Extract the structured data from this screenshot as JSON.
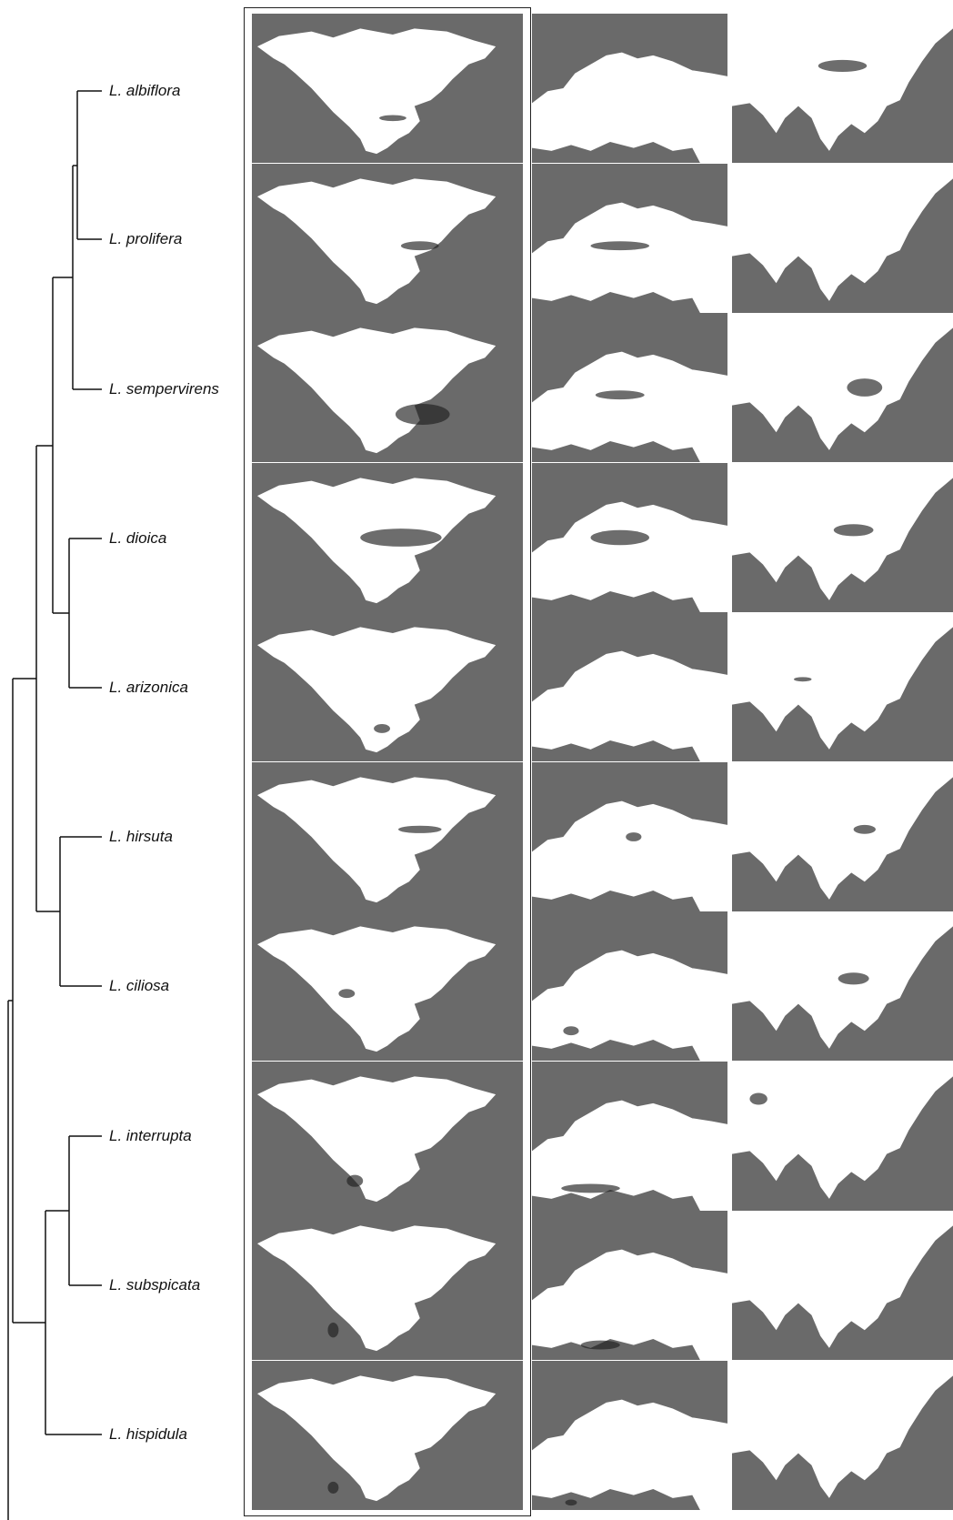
{
  "taxa": [
    "L. albiflora",
    "L. prolifera",
    "L. sempervirens",
    "L. dioica",
    "L. arizonica",
    "L. hirsuta",
    "L. ciliosa",
    "L. interrupta",
    "L. subspicata",
    "L. hispidula"
  ],
  "map_regions": [
    "north-america",
    "europe",
    "east-asia"
  ],
  "colors": {
    "ocean": "#6a6a6a",
    "land": "#ffffff",
    "suitability_high": "#1e1e1e",
    "line": "#111111"
  }
}
